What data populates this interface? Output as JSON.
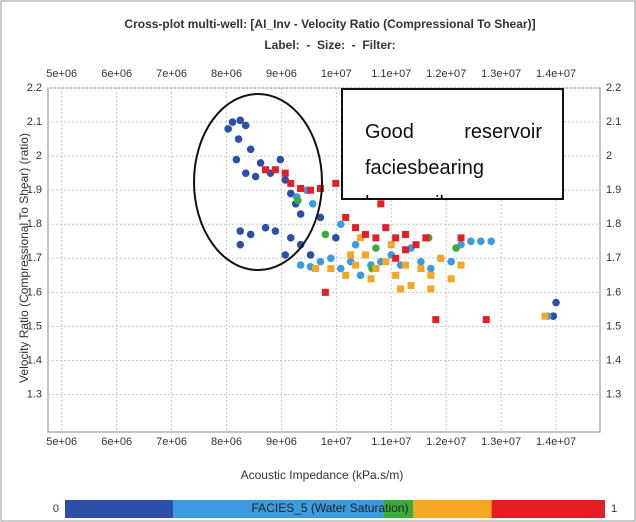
{
  "chart_data": {
    "type": "scatter",
    "title": "Cross-plot multi-well: [AI_Inv - Velocity Ratio (Compressional To Shear)]",
    "subtitle": "Label:  -  Size:  -  Filter:",
    "x_label": "Acoustic Impedance (kPa.s/m)",
    "y_label": "Velocity Ratio (Compressional To Shear) (ratio)",
    "annotation": "Good reservoir faciesbearing heavy oil",
    "xlim": [
      4750000,
      14800000
    ],
    "ylim": [
      1.19,
      2.2
    ],
    "xticks": [
      {
        "value": 5000000,
        "label": "5e+06"
      },
      {
        "value": 6000000,
        "label": "6e+06"
      },
      {
        "value": 7000000,
        "label": "7e+06"
      },
      {
        "value": 8000000,
        "label": "8e+06"
      },
      {
        "value": 9000000,
        "label": "9e+06"
      },
      {
        "value": 10000000,
        "label": "1e+07"
      },
      {
        "value": 11000000,
        "label": "1.1e+07"
      },
      {
        "value": 12000000,
        "label": "1.2e+07"
      },
      {
        "value": 13000000,
        "label": "1.3e+07"
      },
      {
        "value": 14000000,
        "label": "1.4e+07"
      }
    ],
    "yticks": [
      2.2,
      2.1,
      2,
      1.9,
      1.8,
      1.7,
      1.6,
      1.5,
      1.4,
      1.3
    ],
    "grid": true,
    "colorbar": {
      "label": "FACIES_5 (Water Saturation)",
      "min": 0,
      "max": 1,
      "segments": [
        {
          "from": 0,
          "to": 0.2,
          "color": "#2e4fa8"
        },
        {
          "from": 0.2,
          "to": 0.59,
          "color": "#3c9be0"
        },
        {
          "from": 0.59,
          "to": 0.645,
          "color": "#3bab3b"
        },
        {
          "from": 0.645,
          "to": 0.79,
          "color": "#f5a623"
        },
        {
          "from": 0.79,
          "to": 1,
          "color": "#e41e26"
        }
      ]
    },
    "series": [
      {
        "color": "#2e4fa8",
        "marker": "circle",
        "x": [
          8110000,
          8250000,
          8030000,
          8220000,
          8350000,
          8180000,
          8440000,
          8620000,
          8350000,
          8530000,
          8800000,
          8980000,
          9070000,
          9170000,
          9260000,
          9350000,
          8250000,
          8440000,
          8710000,
          8890000,
          9170000,
          9070000,
          9350000,
          9530000,
          9710000,
          9990000,
          8250000,
          14000000,
          13950000
        ],
        "values": [
          2.1,
          2.105,
          2.08,
          2.05,
          2.09,
          1.99,
          2.02,
          1.98,
          1.95,
          1.94,
          1.95,
          1.99,
          1.93,
          1.89,
          1.86,
          1.83,
          1.78,
          1.77,
          1.79,
          1.78,
          1.76,
          1.71,
          1.74,
          1.71,
          1.82,
          1.76,
          1.74,
          1.57,
          1.53
        ]
      },
      {
        "color": "#3c9be0",
        "marker": "circle",
        "x": [
          9350000,
          9530000,
          9710000,
          9900000,
          10080000,
          10260000,
          10350000,
          10440000,
          10630000,
          10810000,
          11000000,
          11170000,
          11360000,
          11540000,
          11720000,
          11900000,
          12090000,
          12270000,
          12450000,
          12630000,
          12820000,
          9280000,
          9460000,
          9570000,
          10080000,
          13850000
        ],
        "values": [
          1.68,
          1.675,
          1.69,
          1.7,
          1.67,
          1.69,
          1.74,
          1.65,
          1.68,
          1.69,
          1.71,
          1.68,
          1.73,
          1.69,
          1.67,
          1.7,
          1.69,
          1.74,
          1.75,
          1.75,
          1.75,
          1.88,
          1.9,
          1.86,
          1.8,
          1.53
        ]
      },
      {
        "color": "#3bab3b",
        "marker": "circle",
        "x": [
          9300000,
          9800000,
          10720000,
          11680000,
          12180000,
          10650000
        ],
        "values": [
          1.87,
          1.77,
          1.73,
          1.76,
          1.73,
          1.67
        ]
      },
      {
        "color": "#f5a623",
        "marker": "square",
        "x": [
          9620000,
          9900000,
          10170000,
          10350000,
          10530000,
          10720000,
          10900000,
          11080000,
          11260000,
          11360000,
          11540000,
          11720000,
          11900000,
          12090000,
          12270000,
          11170000,
          10630000,
          10260000,
          10440000,
          11000000,
          13800000,
          11720000
        ],
        "values": [
          1.67,
          1.67,
          1.65,
          1.68,
          1.71,
          1.67,
          1.69,
          1.65,
          1.68,
          1.62,
          1.67,
          1.65,
          1.7,
          1.64,
          1.68,
          1.61,
          1.64,
          1.71,
          1.76,
          1.74,
          1.53,
          1.61
        ]
      },
      {
        "color": "#e41e26",
        "marker": "square",
        "x": [
          8710000,
          8890000,
          9070000,
          9170000,
          9350000,
          9530000,
          9710000,
          9990000,
          10170000,
          10350000,
          10530000,
          10720000,
          10900000,
          11080000,
          11260000,
          11450000,
          11630000,
          10810000,
          9800000,
          11810000,
          12730000,
          12270000,
          11080000,
          11260000
        ],
        "values": [
          1.96,
          1.96,
          1.95,
          1.92,
          1.905,
          1.9,
          1.905,
          1.92,
          1.82,
          1.79,
          1.77,
          1.76,
          1.79,
          1.76,
          1.77,
          1.74,
          1.76,
          1.86,
          1.6,
          1.52,
          1.52,
          1.76,
          1.7,
          1.725
        ]
      }
    ]
  }
}
